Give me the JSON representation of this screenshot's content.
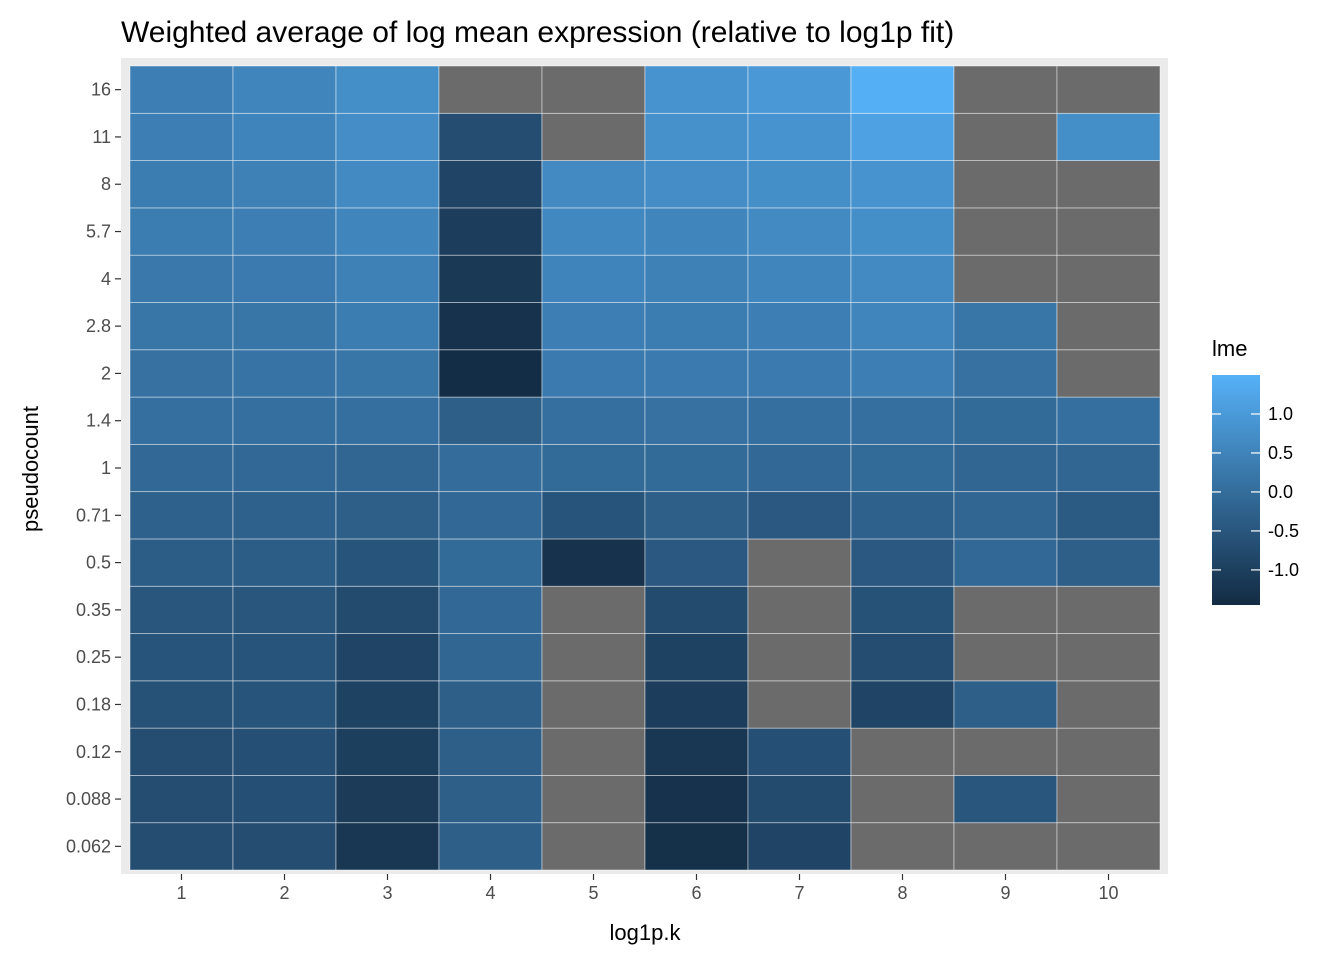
{
  "chart_data": {
    "type": "heatmap",
    "title": "Weighted average of log mean expression (relative to log1p fit)",
    "xlabel": "log1p.k",
    "ylabel": "pseudocount",
    "x_categories": [
      "1",
      "2",
      "3",
      "4",
      "5",
      "6",
      "7",
      "8",
      "9",
      "10"
    ],
    "y_categories": [
      "0.062",
      "0.088",
      "0.12",
      "0.18",
      "0.25",
      "0.35",
      "0.5",
      "0.71",
      "1",
      "1.4",
      "2",
      "2.8",
      "4",
      "5.7",
      "8",
      "11",
      "16"
    ],
    "values": [
      [
        -0.7,
        -0.7,
        -1.2,
        -0.3,
        null,
        -1.35,
        -0.9,
        null,
        null,
        null
      ],
      [
        -0.7,
        -0.65,
        -1.1,
        -0.3,
        null,
        -1.3,
        -0.75,
        null,
        -0.5,
        null
      ],
      [
        -0.7,
        -0.65,
        -1.0,
        -0.3,
        null,
        -1.2,
        -0.65,
        null,
        null,
        null
      ],
      [
        -0.6,
        -0.55,
        -0.95,
        -0.3,
        null,
        -1.05,
        null,
        -0.9,
        -0.3,
        null
      ],
      [
        -0.55,
        -0.55,
        -0.9,
        -0.15,
        null,
        -0.95,
        null,
        -0.7,
        null,
        null
      ],
      [
        -0.5,
        -0.5,
        -0.75,
        -0.1,
        null,
        -0.75,
        null,
        -0.6,
        null,
        null
      ],
      [
        -0.35,
        -0.35,
        -0.55,
        -0.05,
        -1.3,
        -0.45,
        null,
        -0.45,
        -0.1,
        -0.3
      ],
      [
        -0.25,
        -0.25,
        -0.3,
        -0.1,
        -0.55,
        -0.3,
        -0.45,
        -0.25,
        -0.15,
        -0.4
      ],
      [
        -0.1,
        -0.1,
        -0.15,
        0.0,
        -0.05,
        -0.05,
        -0.1,
        -0.05,
        -0.15,
        -0.15
      ],
      [
        0.05,
        0.05,
        0.05,
        -0.3,
        0.05,
        0.1,
        0.05,
        0.05,
        -0.05,
        0.05
      ],
      [
        0.1,
        0.15,
        0.2,
        -1.4,
        0.3,
        0.3,
        0.3,
        0.4,
        0.1,
        null
      ],
      [
        0.2,
        0.2,
        0.35,
        -1.3,
        0.4,
        0.35,
        0.4,
        0.55,
        0.2,
        null
      ],
      [
        0.25,
        0.3,
        0.45,
        -1.15,
        0.5,
        0.45,
        0.55,
        0.65,
        null,
        null
      ],
      [
        0.35,
        0.4,
        0.55,
        -1.05,
        0.6,
        0.55,
        0.65,
        0.75,
        null,
        null
      ],
      [
        0.35,
        0.45,
        0.65,
        -0.9,
        0.65,
        0.7,
        0.75,
        0.85,
        null,
        null
      ],
      [
        0.4,
        0.5,
        0.7,
        -0.7,
        null,
        0.8,
        0.85,
        1.15,
        null,
        0.75
      ],
      [
        0.4,
        0.55,
        0.75,
        null,
        null,
        0.85,
        0.95,
        1.45,
        null,
        null
      ]
    ],
    "na_color": "#6b6b6b",
    "grid": true,
    "legend": {
      "title": "lme",
      "position": "right",
      "low": -1.45,
      "high": 1.5,
      "low_color": "#132b43",
      "high_color": "#56b1f7",
      "breaks": [
        1.0,
        0.5,
        0.0,
        -0.5,
        -1.0
      ],
      "break_labels": [
        "1.0",
        "0.5",
        "0.0",
        "-0.5",
        "-1.0"
      ]
    }
  }
}
